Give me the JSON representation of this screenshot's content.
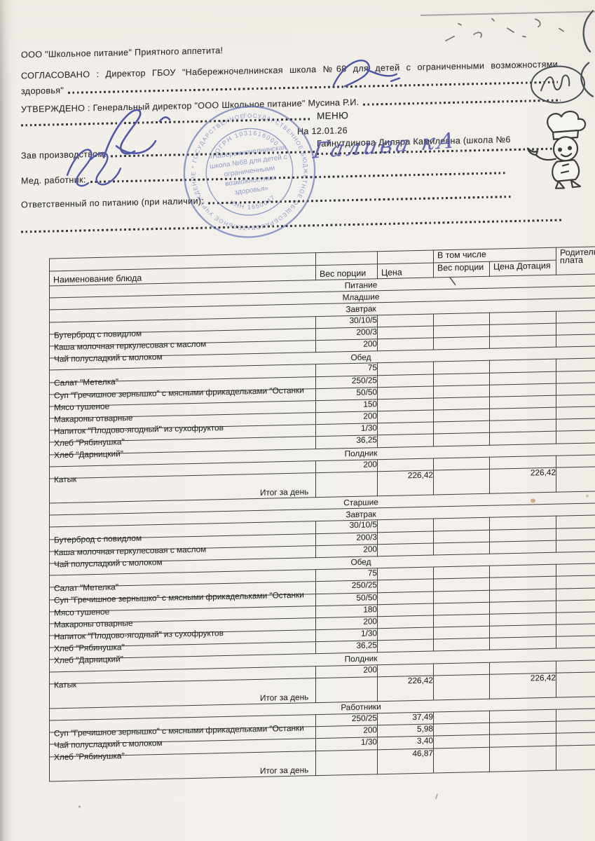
{
  "doc": {
    "org_line": "ООО \"Школьное питание\" Приятного аппетита!",
    "agreed_line1": "СОГЛАСОВАНО : Директор ГБОУ \"Набережночелнинская школа №68 для детей с ограниченными возможностями",
    "agreed_line2": "здоровья\"",
    "approved_line": "УТВЕРЖДЕНО : Генеральный директор \"ООО Школьное питание\" Мусина Р.И.",
    "title": "МЕНЮ",
    "date_line": "На 12.01.26",
    "production_manager_name": "Гайнутдинова Диляра Камилевна (школа №6",
    "label_production_manager": "Зав производством:",
    "label_med_worker": "Мед. работник:",
    "label_food_responsible": "Ответственный по питанию (при наличии):",
    "med_worker_signature_text": "Галива кА"
  },
  "stamp": {
    "ring_text": "ГОСУДАРСТВЕННОЕ БЮДЖЕТНОЕ ОБЩЕОБРАЗОВАТЕЛЬНОЕ УЧРЕЖДЕНИЕ * ГОСУДАРСТВЕННОЕ БЮДЖЕТНОЕ УЧРЕЖДЕНИЕ *",
    "ogrn": "ОГРН 1031616000",
    "inn": "ИНН 1650047",
    "center_lines": [
      "«Набережночелнинская",
      "школа №68 для детей с",
      "ограниченными",
      "возможностями",
      "здоровья»"
    ],
    "color": "#4a5fae"
  },
  "table": {
    "headers": {
      "name": "Наименование блюда",
      "portion": "Вес порции",
      "price": "Цена",
      "including": "В том числе",
      "sub_portion": "Вес порции",
      "subsidy": "Цена Дотация",
      "parent_pay_line1": "Родительская",
      "parent_pay_line2": "плата"
    },
    "rows": [
      {
        "t": "s",
        "n": "Питание"
      },
      {
        "t": "s",
        "n": "Младшие"
      },
      {
        "t": "s",
        "n": "Завтрак"
      },
      {
        "t": "d",
        "n": "Бутерброд с повидлом",
        "w": "30/10/5"
      },
      {
        "t": "d",
        "n": "Каша молочная геркулесовая с маслом",
        "w": "200/3"
      },
      {
        "t": "d",
        "n": "Чай полусладкий с молоком",
        "w": "200"
      },
      {
        "t": "s",
        "n": "Обед"
      },
      {
        "t": "d",
        "n": "Салат \"Метелка\"",
        "w": "75"
      },
      {
        "t": "d",
        "n": "Суп \"Гречишное зернышко\" с мясными фрикадельками \"Останки",
        "w": "250/25"
      },
      {
        "t": "d",
        "n": "Мясо тушеное",
        "w": "50/50"
      },
      {
        "t": "d",
        "n": "Макароны отварные",
        "w": "150"
      },
      {
        "t": "d",
        "n": "Напиток \"Плодово-ягодный\" из сухофруктов",
        "w": "200"
      },
      {
        "t": "d",
        "n": "Хлеб \"Рябинушка\"",
        "w": "1/30"
      },
      {
        "t": "d",
        "n": "Хлеб \"Дарницкий\"",
        "w": "36,25"
      },
      {
        "t": "s",
        "n": "Полдник"
      },
      {
        "t": "d",
        "n": "Катык",
        "w": "200"
      },
      {
        "t": "x",
        "n": "Итог за день",
        "p": "226,42",
        "sp": "226,42"
      },
      {
        "t": "s",
        "n": "Старшие"
      },
      {
        "t": "s",
        "n": "Завтрак"
      },
      {
        "t": "d",
        "n": "Бутерброд с повидлом",
        "w": "30/10/5"
      },
      {
        "t": "d",
        "n": "Каша молочная геркулесовая с маслом",
        "w": "200/3"
      },
      {
        "t": "d",
        "n": "Чай полусладкий с молоком",
        "w": "200"
      },
      {
        "t": "s",
        "n": "Обед"
      },
      {
        "t": "d",
        "n": "Салат \"Метелка\"",
        "w": "75"
      },
      {
        "t": "d",
        "n": "Суп \"Гречишное зернышко\" с мясными фрикадельками \"Останки",
        "w": "250/25"
      },
      {
        "t": "d",
        "n": "Мясо тушеное",
        "w": "50/50"
      },
      {
        "t": "d",
        "n": "Макароны отварные",
        "w": "180"
      },
      {
        "t": "d",
        "n": "Напиток \"Плодово-ягодный\" из сухофруктов",
        "w": "200"
      },
      {
        "t": "d",
        "n": "Хлеб \"Рябинушка\"",
        "w": "1/30"
      },
      {
        "t": "d",
        "n": "Хлеб \"Дарницкий\"",
        "w": "36,25"
      },
      {
        "t": "s",
        "n": "Полдник"
      },
      {
        "t": "d",
        "n": "Катык",
        "w": "200"
      },
      {
        "t": "x",
        "n": "Итог за день",
        "p": "226,42",
        "sp": "226,42"
      },
      {
        "t": "s",
        "n": "Работники"
      },
      {
        "t": "d",
        "n": "Суп \"Гречишное зернышко\" с мясными фрикадельками \"Останки",
        "w": "250/25",
        "p": "37,49"
      },
      {
        "t": "d",
        "n": "Чай полусладкий с молоком",
        "w": "200",
        "p": "5,98"
      },
      {
        "t": "d",
        "n": "Хлеб \"Рябинушка\"",
        "w": "1/30",
        "p": "3,40"
      },
      {
        "t": "x",
        "n": "Итог за день",
        "p": "46,87"
      }
    ]
  }
}
